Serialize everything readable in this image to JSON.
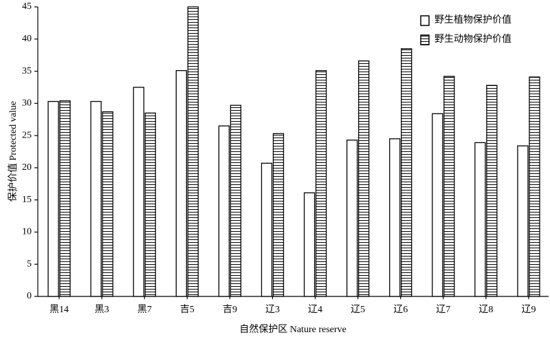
{
  "chart_data": {
    "type": "bar",
    "x_label": "自然保护区 Nature reserve",
    "y_label": "保护价值 Protected value",
    "categories": [
      "黑14",
      "黑3",
      "黑7",
      "吉5",
      "吉9",
      "辽3",
      "辽4",
      "辽5",
      "辽6",
      "辽7",
      "辽8",
      "辽9"
    ],
    "series": [
      {
        "name": "野生植物保护价值",
        "color": "#000000",
        "hatch": "none",
        "values": [
          30.3,
          30.3,
          32.5,
          35.1,
          26.5,
          20.7,
          16.1,
          24.3,
          24.5,
          28.4,
          23.9,
          23.4
        ]
      },
      {
        "name": "野生动物保护价值",
        "color": "#000000",
        "hatch": "horizontal",
        "values": [
          30.4,
          28.7,
          28.5,
          45,
          29.7,
          25.3,
          35.1,
          36.6,
          38.5,
          34.2,
          32.8,
          34.1
        ]
      }
    ],
    "ylim": [
      0,
      45
    ],
    "yticks": [
      0,
      5,
      10,
      15,
      20,
      25,
      30,
      35,
      40,
      45
    ],
    "legend": "upper right",
    "grid": false
  }
}
